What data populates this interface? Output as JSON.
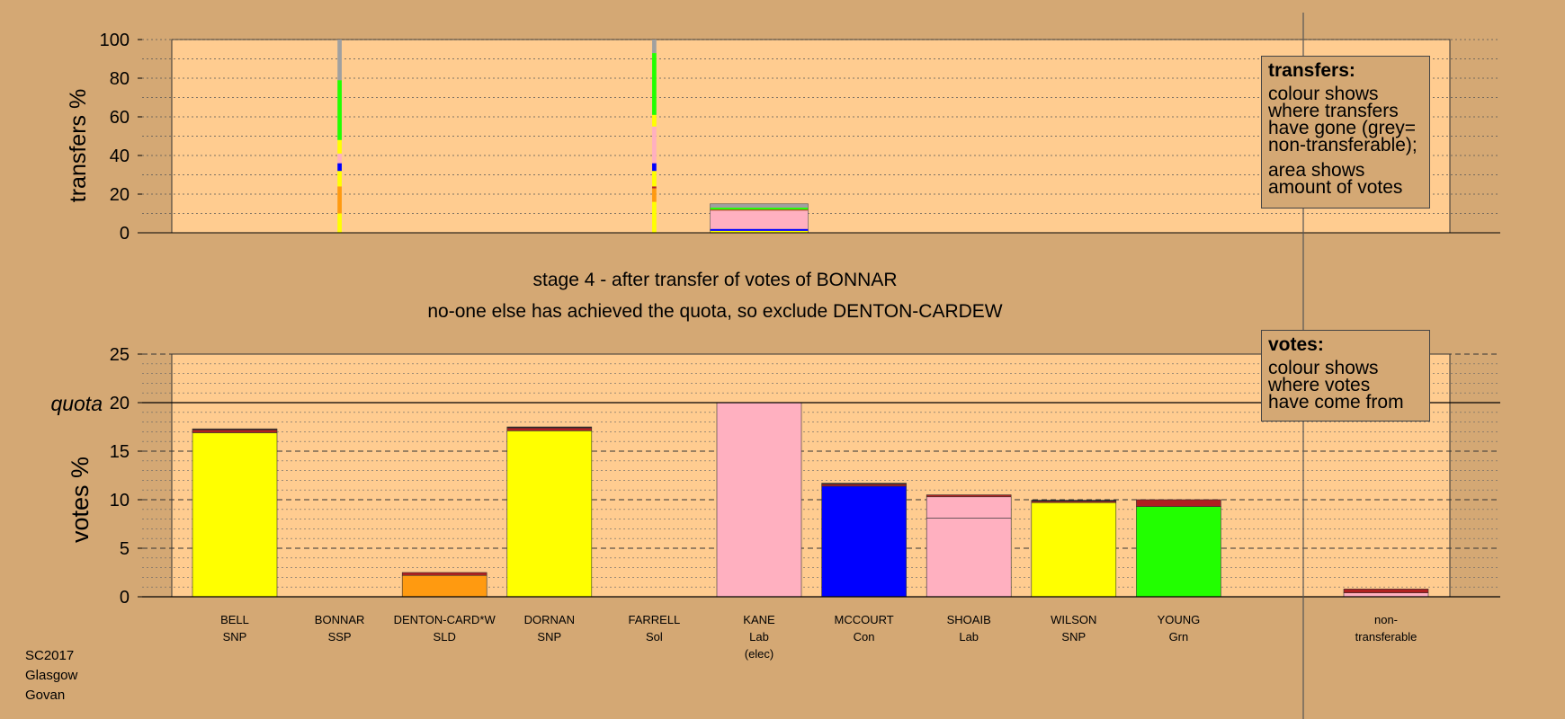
{
  "chart_data": {
    "type": "bar",
    "title": "stage 4 - after transfer of votes of BONNAR",
    "subtitle": "no-one else has achieved the quota, so exclude DENTON-CARDEW",
    "colors": {
      "SNP": "#ffff00",
      "Lab": "#ffb0c0",
      "Con": "#0000ff",
      "Grn": "#22ff00",
      "SLD": "#ff9a10",
      "SSP": "#ff0000",
      "Sol": "#b02020",
      "nontransferable": "#a0a0a0",
      "panel_bg": "#ffcc90",
      "page_bg": "#d4a874"
    },
    "transfers_panel": {
      "ylabel": "transfers %",
      "ylim": [
        0,
        100
      ],
      "yticks": [
        "0",
        "20",
        "40",
        "60",
        "80",
        "100"
      ],
      "bars": [
        {
          "name": "BONNAR",
          "width_share": 0.05,
          "segments": [
            {
              "party": "SNP",
              "value": 10
            },
            {
              "party": "SLD",
              "value": 14
            },
            {
              "party": "SNP",
              "value": 8
            },
            {
              "party": "Con",
              "value": 4
            },
            {
              "party": "Lab",
              "value": 5
            },
            {
              "party": "SNP",
              "value": 7
            },
            {
              "party": "Grn",
              "value": 31
            },
            {
              "party": "nontransferable",
              "value": 21
            }
          ]
        },
        {
          "name": "FARRELL",
          "width_share": 0.05,
          "segments": [
            {
              "party": "SNP",
              "value": 16
            },
            {
              "party": "SLD",
              "value": 7
            },
            {
              "party": "Sol",
              "value": 1
            },
            {
              "party": "SNP",
              "value": 8
            },
            {
              "party": "Con",
              "value": 4
            },
            {
              "party": "Lab",
              "value": 19
            },
            {
              "party": "SNP",
              "value": 6
            },
            {
              "party": "Grn",
              "value": 32
            },
            {
              "party": "nontransferable",
              "value": 7
            }
          ]
        },
        {
          "name": "KANE",
          "width_share": 1,
          "segments": [
            {
              "party": "SNP",
              "value": 1
            },
            {
              "party": "Con",
              "value": 1
            },
            {
              "party": "Lab",
              "value": 9.5
            },
            {
              "party": "Sol",
              "value": 0.5
            },
            {
              "party": "Grn",
              "value": 1
            },
            {
              "party": "nontransferable",
              "value": 2
            }
          ]
        }
      ]
    },
    "votes_panel": {
      "ylabel": "votes %",
      "quota_label": "quota",
      "quota": 20,
      "ylim": [
        0,
        25
      ],
      "yticks": [
        "0",
        "5",
        "10",
        "15",
        "20",
        "25"
      ],
      "candidates": [
        {
          "name": "BELL",
          "party": "SNP",
          "note": "",
          "segments": [
            {
              "party": "SNP",
              "value": 16.9
            },
            {
              "party": "Sol",
              "value": 0.3
            },
            {
              "party": "outline",
              "value": 0.1
            }
          ]
        },
        {
          "name": "BONNAR",
          "party": "SSP",
          "note": "",
          "segments": []
        },
        {
          "name": "DENTON-CARD*W",
          "party": "SLD",
          "note": "",
          "segments": [
            {
              "party": "SLD",
              "value": 2.2
            },
            {
              "party": "Sol",
              "value": 0.3
            }
          ]
        },
        {
          "name": "DORNAN",
          "party": "SNP",
          "note": "",
          "segments": [
            {
              "party": "SNP",
              "value": 17.1
            },
            {
              "party": "Sol",
              "value": 0.3
            },
            {
              "party": "outline",
              "value": 0.1
            }
          ]
        },
        {
          "name": "FARRELL",
          "party": "Sol",
          "note": "",
          "segments": []
        },
        {
          "name": "KANE",
          "party": "Lab",
          "note": "(elec)",
          "segments": [
            {
              "party": "Lab",
              "value": 20
            }
          ]
        },
        {
          "name": "MCCOURT",
          "party": "Con",
          "note": "",
          "segments": [
            {
              "party": "Con",
              "value": 11.4
            },
            {
              "party": "Sol",
              "value": 0.2
            },
            {
              "party": "outline",
              "value": 0.1
            }
          ]
        },
        {
          "name": "SHOAIB",
          "party": "Lab",
          "note": "",
          "segments": [
            {
              "party": "Lab",
              "value": 8.1
            },
            {
              "party": "Lab",
              "value": 2.2
            },
            {
              "party": "Sol",
              "value": 0.2
            }
          ]
        },
        {
          "name": "WILSON",
          "party": "SNP",
          "note": "",
          "segments": [
            {
              "party": "SNP",
              "value": 9.7
            },
            {
              "party": "Sol",
              "value": 0.15
            },
            {
              "party": "outline",
              "value": 0.1
            }
          ]
        },
        {
          "name": "YOUNG",
          "party": "Grn",
          "note": "",
          "segments": [
            {
              "party": "Grn",
              "value": 9.3
            },
            {
              "party": "Sol",
              "value": 0.7
            }
          ]
        }
      ],
      "nontransferable": {
        "label_line1": "non-",
        "label_line2": "transferable",
        "segments": [
          {
            "party": "Lab",
            "value": 0.4
          },
          {
            "party": "Sol",
            "value": 0.4
          }
        ]
      }
    }
  },
  "legend_transfers": {
    "title": "transfers:",
    "lines": [
      "colour shows",
      "where transfers",
      "have gone (grey=",
      "non-transferable);"
    ],
    "lines2": [
      "area shows",
      "amount of votes"
    ]
  },
  "legend_votes": {
    "title": "votes:",
    "lines": [
      "colour shows",
      "where votes",
      "have come from"
    ]
  },
  "footer": {
    "line1": "SC2017",
    "line2": "Glasgow",
    "line3": "Govan"
  }
}
